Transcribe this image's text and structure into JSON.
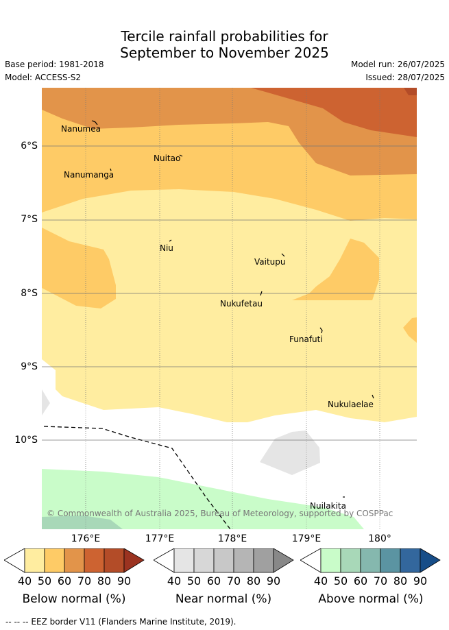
{
  "title_line1": "Tercile rainfall probabilities for",
  "title_line2": "September to November 2025",
  "base_period": "Base period: 1981-2018",
  "model": "Model: ACCESS-S2",
  "model_run": "Model run: 26/07/2025",
  "issued": "Issued: 28/07/2025",
  "lat_labels": [
    "6°S",
    "7°S",
    "8°S",
    "9°S",
    "10°S"
  ],
  "lon_labels": [
    "176°E",
    "177°E",
    "178°E",
    "179°E",
    "180°"
  ],
  "islands": [
    {
      "name": "Nanumea"
    },
    {
      "name": "Nuitao"
    },
    {
      "name": "Nanumanga"
    },
    {
      "name": "Niu"
    },
    {
      "name": "Vaitupu"
    },
    {
      "name": "Nukufetau"
    },
    {
      "name": "Funafuti"
    },
    {
      "name": "Nukulaelae"
    },
    {
      "name": "Nuilakita"
    }
  ],
  "copyright": "© Commonwealth of Australia 2025, Bureau of Meteorology, supported by COSPPac",
  "colorbars": [
    {
      "title": "Below normal (%)",
      "ticks": [
        "40",
        "50",
        "60",
        "70",
        "80",
        "90"
      ],
      "colors": [
        "#ffeda0",
        "#fecb66",
        "#e2944a",
        "#cd6331",
        "#b34c28",
        "#9b3320"
      ]
    },
    {
      "title": "Near normal (%)",
      "ticks": [
        "40",
        "50",
        "60",
        "70",
        "80",
        "90"
      ],
      "colors": [
        "#e5e5e5",
        "#d7d7d7",
        "#c8c8c8",
        "#b5b5b5",
        "#a0a0a0",
        "#888888"
      ]
    },
    {
      "title": "Above normal (%)",
      "ticks": [
        "40",
        "50",
        "60",
        "70",
        "80",
        "90"
      ],
      "colors": [
        "#c9fcc9",
        "#a8d8b8",
        "#85b8ae",
        "#5b94a2",
        "#33679d",
        "#164d88"
      ]
    }
  ],
  "footer": "-- -- -- EEZ border V11 (Flanders Marine Institute, 2019)."
}
